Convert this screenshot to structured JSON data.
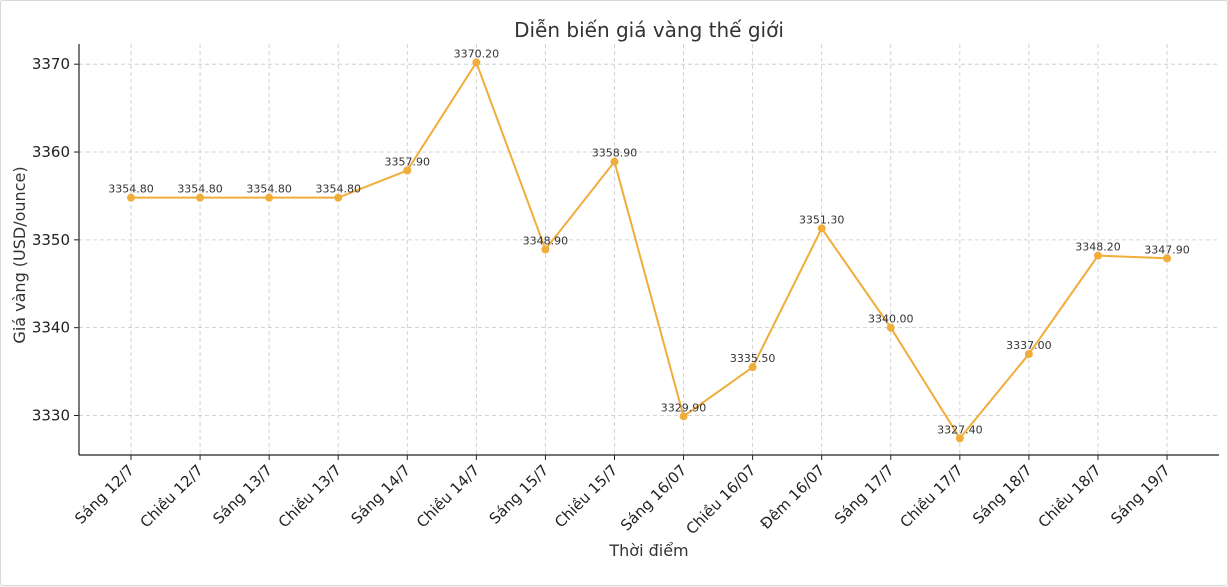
{
  "chart_data": {
    "type": "line",
    "title": "Diễn biến giá vàng thế giới",
    "xlabel": "Thời điểm",
    "ylabel": "Giá vàng (USD/ounce)",
    "categories": [
      "Sáng 12/7",
      "Chiều 12/7",
      "Sáng 13/7",
      "Chiều 13/7",
      "Sáng 14/7",
      "Chiều 14/7",
      "Sáng 15/7",
      "Chiều 15/7",
      "Sáng 16/07",
      "Chiều 16/07",
      "Đêm 16/07",
      "Sáng 17/7",
      "Chiều 17/7",
      "Sáng 18/7",
      "Chiều 18/7",
      "Sáng 19/7"
    ],
    "values": [
      3354.8,
      3354.8,
      3354.8,
      3354.8,
      3357.9,
      3370.2,
      3348.9,
      3358.9,
      3329.9,
      3335.5,
      3351.3,
      3340.0,
      3327.4,
      3337.0,
      3348.2,
      3347.9
    ],
    "data_labels": [
      "3354.80",
      "3354.80",
      "3354.80",
      "3354.80",
      "3357.90",
      "3370.20",
      "3348.90",
      "3358.90",
      "3329.90",
      "3335.50",
      "3351.30",
      "3340.00",
      "3327.40",
      "3337.00",
      "3348.20",
      "3347.90"
    ],
    "yticks": [
      3330,
      3340,
      3350,
      3360,
      3370
    ],
    "ylim": [
      3325.5,
      3372.3
    ],
    "grid": true,
    "line_color": "#f0ad3a"
  }
}
